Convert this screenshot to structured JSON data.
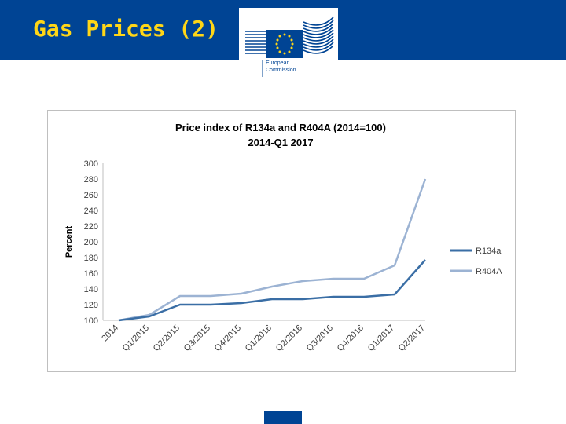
{
  "slide": {
    "title": "Gas Prices (2)",
    "logo": {
      "line1": "European",
      "line2": "Commission"
    }
  },
  "colors": {
    "header_bg": "#004494",
    "title_color": "#ffd617",
    "r134a": "#3a6ea5",
    "r404a": "#9cb3d3"
  },
  "chart_data": {
    "type": "line",
    "title": "Price index of R134a and R404A (2014=100)",
    "subtitle": "2014-Q1 2017",
    "ylabel": "Percent",
    "xlabel": "",
    "ylim": [
      100,
      300
    ],
    "yticks": [
      "100",
      "120",
      "140",
      "160",
      "180",
      "200",
      "220",
      "240",
      "260",
      "280",
      "300"
    ],
    "categories": [
      "2014",
      "Q1/2015",
      "Q2/2015",
      "Q3/2015",
      "Q4/2015",
      "Q1/2016",
      "Q2/2016",
      "Q3/2016",
      "Q4/2016",
      "Q1/2017",
      "Q2/2017"
    ],
    "series": [
      {
        "name": "R134a",
        "values": [
          100,
          105,
          120,
          120,
          122,
          127,
          127,
          130,
          130,
          133,
          177
        ]
      },
      {
        "name": "R404A",
        "values": [
          100,
          107,
          131,
          131,
          134,
          143,
          150,
          153,
          153,
          170,
          280
        ]
      }
    ],
    "grid": false,
    "legend": "right"
  }
}
